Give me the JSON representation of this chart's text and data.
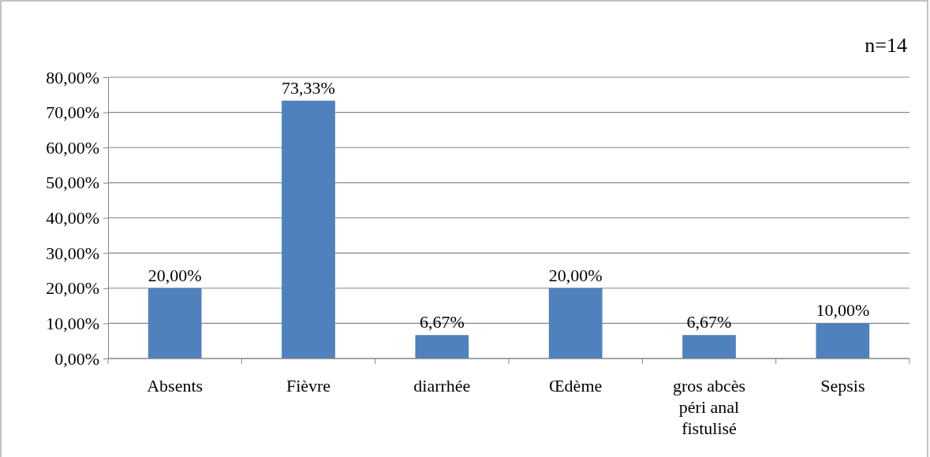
{
  "chart_data": {
    "type": "bar",
    "annotations": [
      "n=14"
    ],
    "categories": [
      "Absents",
      "Fièvre",
      "diarrhée",
      "Œdème",
      "gros abcès péri anal fistulisé",
      "Sepsis"
    ],
    "values": [
      20,
      73.33,
      6.67,
      20,
      6.67,
      10
    ],
    "value_labels": [
      "20,00%",
      "73,33%",
      "6,67%",
      "20,00%",
      "6,67%",
      "10,00%"
    ],
    "color": "#4f81bd",
    "ylim": [
      0,
      80
    ],
    "yticks": [
      {
        "value": 0,
        "label": "0,00%"
      },
      {
        "value": 10,
        "label": "10,00%"
      },
      {
        "value": 20,
        "label": "20,00%"
      },
      {
        "value": 30,
        "label": "30,00%"
      },
      {
        "value": 40,
        "label": "40,00%"
      },
      {
        "value": 50,
        "label": "50,00%"
      },
      {
        "value": 60,
        "label": "60,00%"
      },
      {
        "value": 70,
        "label": "70,00%"
      },
      {
        "value": 80,
        "label": "80,00%"
      }
    ],
    "grid": "y"
  }
}
